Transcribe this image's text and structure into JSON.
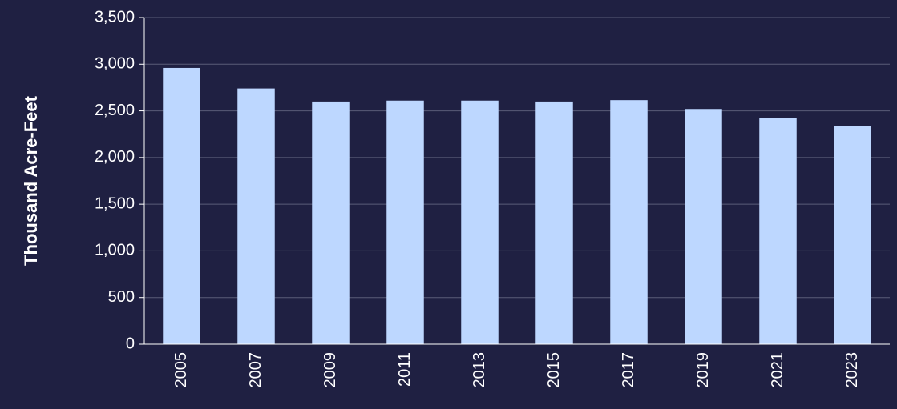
{
  "chart_data": {
    "type": "bar",
    "y_label": "Thousand Acre-Feet",
    "categories": [
      "2005",
      "2007",
      "2009",
      "2011",
      "2013",
      "2015",
      "2017",
      "2019",
      "2021",
      "2023"
    ],
    "values": [
      2960,
      2740,
      2600,
      2610,
      2610,
      2600,
      2615,
      2520,
      2420,
      2340
    ],
    "color": "#bdd7ff",
    "ylim": [
      0,
      3500
    ],
    "yticks": [
      0,
      500,
      {
        "value": 1000,
        "label": "1,000"
      },
      {
        "value": 1500,
        "label": "1,500"
      },
      {
        "value": 2000,
        "label": "2,000"
      },
      {
        "value": 2500,
        "label": "2,500"
      },
      {
        "value": 3000,
        "label": "3,000"
      },
      {
        "value": 3500,
        "label": "3,500"
      }
    ],
    "grid": true
  }
}
